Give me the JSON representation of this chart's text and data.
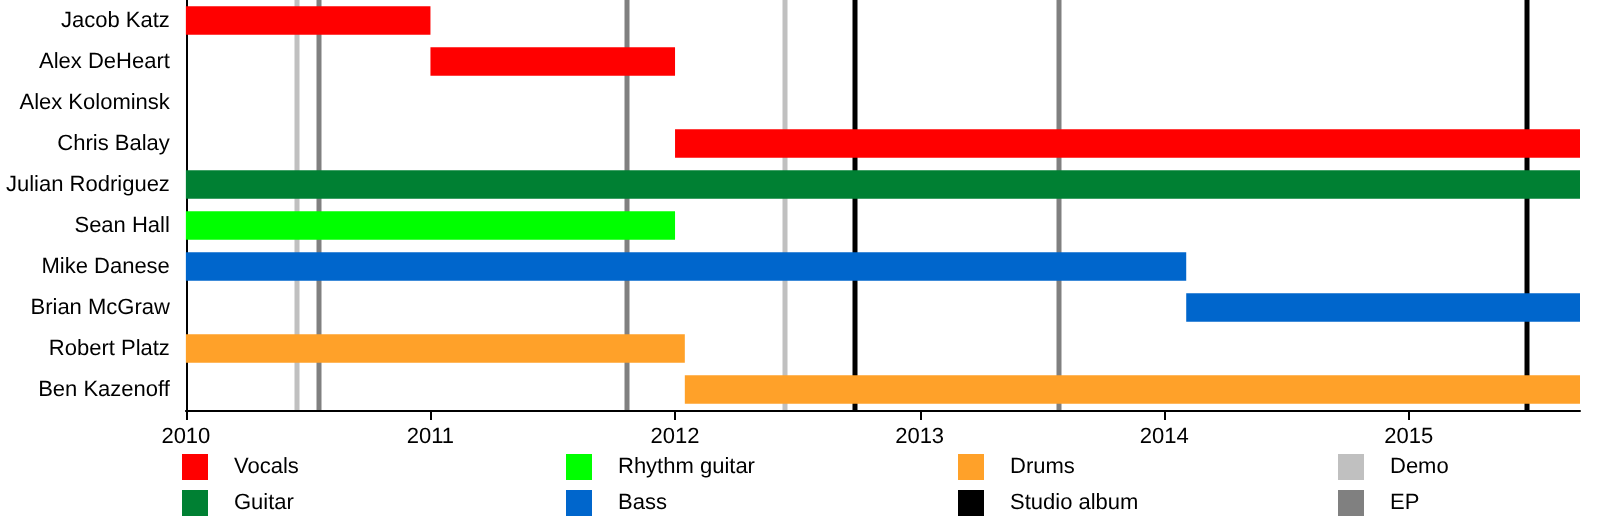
{
  "chart_data": {
    "type": "bar",
    "orientation": "horizontal",
    "categories": [
      "Jacob Katz",
      "Alex DeHeart",
      "Alex Kolominsk",
      "Chris Balay",
      "Julian Rodriguez",
      "Sean Hall",
      "Mike Danese",
      "Brian McGraw",
      "Robert Platz",
      "Ben Kazenoff"
    ],
    "series": [
      {
        "name": "Vocals",
        "color": "#ff0000",
        "base": [
          2010,
          2011,
          null,
          2012,
          null,
          null,
          null,
          null,
          null,
          null
        ],
        "values": [
          1,
          1,
          null,
          3.7,
          null,
          null,
          null,
          null,
          null,
          null
        ]
      },
      {
        "name": "Guitar",
        "color": "#008033",
        "base": [
          null,
          null,
          null,
          null,
          2010,
          null,
          null,
          null,
          null,
          null
        ],
        "values": [
          null,
          null,
          null,
          null,
          5.7,
          null,
          null,
          null,
          null,
          null
        ]
      },
      {
        "name": "Rhythm guitar",
        "color": "#00ff00",
        "base": [
          null,
          null,
          null,
          null,
          null,
          2010,
          null,
          null,
          null,
          null
        ],
        "values": [
          null,
          null,
          null,
          null,
          null,
          2,
          null,
          null,
          null,
          null
        ]
      },
      {
        "name": "Bass",
        "color": "#0066cc",
        "base": [
          null,
          null,
          null,
          null,
          null,
          null,
          2010,
          2014.09,
          null,
          null
        ],
        "values": [
          null,
          null,
          null,
          null,
          null,
          null,
          4.09,
          1.61,
          null,
          null
        ]
      },
      {
        "name": "Drums",
        "color": "#ffa129",
        "base": [
          null,
          null,
          null,
          null,
          null,
          null,
          null,
          null,
          2010,
          2012.04
        ],
        "values": [
          null,
          null,
          null,
          null,
          null,
          null,
          null,
          null,
          2.04,
          3.66
        ]
      }
    ],
    "ref_lines": [
      {
        "axis": "x",
        "value": 2012.73,
        "label": "Studio album",
        "color": "#000000"
      },
      {
        "axis": "x",
        "value": 2015.48,
        "color": "#000000"
      },
      {
        "axis": "x",
        "value": 2010.45,
        "label": "Demo",
        "color": "#c0c0c0"
      },
      {
        "axis": "x",
        "value": 2012.45,
        "color": "#c0c0c0"
      },
      {
        "axis": "x",
        "value": 2010.54,
        "label": "EP",
        "color": "#808080"
      },
      {
        "axis": "x",
        "value": 2011.8,
        "color": "#808080"
      },
      {
        "axis": "x",
        "value": 2013.57,
        "color": "#808080"
      }
    ],
    "xlim": [
      2010,
      2015.7
    ],
    "xticks": [
      2010,
      2011,
      2012,
      2013,
      2014,
      2015
    ],
    "legend": "bottom"
  }
}
